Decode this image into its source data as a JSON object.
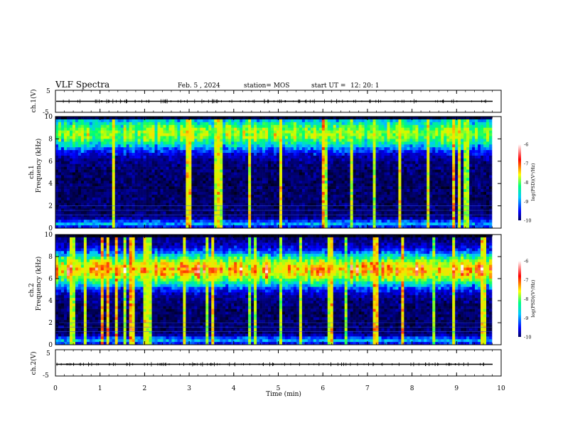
{
  "header": {
    "title": "VLF Spectra",
    "date": "Feb. 5 , 2024",
    "station": "station= MOS",
    "start": "start UT =",
    "start_time": "12: 20: 1"
  },
  "panels": {
    "ch1_wave": {
      "ylabel": "ch.1(V)",
      "ytick_top": "5",
      "ytick_bottom": "-5"
    },
    "ch1_spec": {
      "ylabel_line1": "ch.1",
      "ylabel_line2": "Frequency (kHz)"
    },
    "ch2_spec": {
      "ylabel_line1": "ch.2",
      "ylabel_line2": "Frequency (kHz)"
    },
    "ch2_wave": {
      "ylabel": "ch.2(V)",
      "ytick_top": "5",
      "ytick_bottom": "-5"
    }
  },
  "colorbar": {
    "label": "log(PSD)(V²/Hz)",
    "ticks": [
      "-6",
      "-7",
      "-8",
      "-9",
      "-10"
    ]
  },
  "chart_data": {
    "type": "heatmap",
    "xlabel": "Time (min)",
    "x_ticks": [
      "0",
      "1",
      "2",
      "3",
      "4",
      "5",
      "6",
      "7",
      "8",
      "9",
      "10"
    ],
    "xlim": [
      0,
      10
    ],
    "freq_ticks": [
      "0",
      "2",
      "4",
      "6",
      "8",
      "10"
    ],
    "ylim_khz": [
      0,
      10
    ],
    "wave_ylim_v": [
      -5,
      5
    ],
    "clim_log_psd": [
      -10,
      -6
    ],
    "colormap": [
      "#000080",
      "#0000ff",
      "#00c8ff",
      "#00ff80",
      "#ffff00",
      "#ff0000",
      "#ffffff"
    ],
    "series": [
      {
        "name": "ch.1",
        "band_center_khz": 8.5,
        "band_level": 0.58
      },
      {
        "name": "ch.2",
        "band_center_khz": 6.8,
        "band_level": 0.75
      }
    ]
  }
}
